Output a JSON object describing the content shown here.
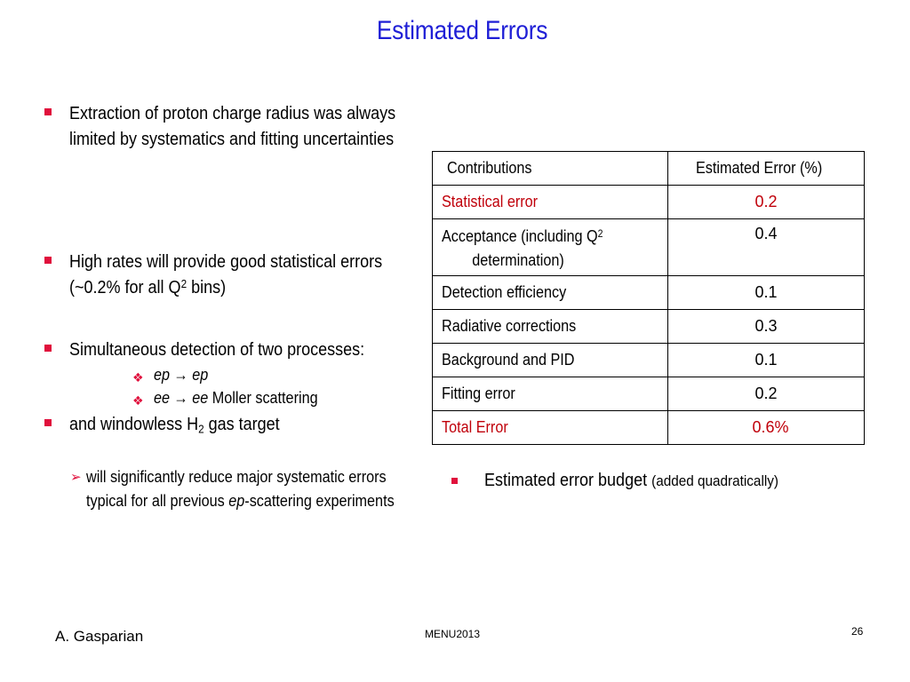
{
  "slide": {
    "title": "Estimated Errors",
    "bullets": [
      {
        "text": "Extraction of proton charge radius was always limited by systematics and fitting uncertainties"
      },
      {
        "text_before": "High rates will provide good statistical errors (~0.2% for all Q",
        "sup": "2",
        "text_after": " bins)"
      },
      {
        "text": "Simultaneous detection of two processes:"
      },
      {
        "text_before": "and windowless H",
        "sub": "2",
        "text_after": " gas target"
      }
    ],
    "sub_bullets": [
      {
        "italic": "ep → ep",
        "text": ""
      },
      {
        "italic": "ee → ee",
        "text": "  Moller scattering"
      }
    ],
    "arrow_bullet": {
      "text_before": "will significantly reduce major systematic errors typical for all previous ",
      "italic": "ep",
      "text_after": "-scattering experiments"
    },
    "budget": {
      "main": "Estimated error budget",
      "paren": "(added quadratically)"
    }
  },
  "table": {
    "headers": [
      "Contributions",
      "Estimated Error (%)"
    ],
    "rows": [
      {
        "label": "Statistical error",
        "value": "0.2",
        "highlight": true
      },
      {
        "label_line1": "Acceptance (including Q",
        "label_sup": "2",
        "label_line2": "determination)",
        "value": "0.4",
        "highlight": false
      },
      {
        "label": "Detection efficiency",
        "value": "0.1",
        "highlight": false
      },
      {
        "label": "Radiative corrections",
        "value": "0.3",
        "highlight": false
      },
      {
        "label": "Background and PID",
        "value": "0.1",
        "highlight": false
      },
      {
        "label": "Fitting error",
        "value": "0.2",
        "highlight": false
      },
      {
        "label": "Total Error",
        "value": "0.6%",
        "highlight": true
      }
    ]
  },
  "footer": {
    "author": "A. Gasparian",
    "event": "MENU2013",
    "page": "26"
  },
  "colors": {
    "title": "#1f1fd6",
    "bullet": "#e0103c",
    "highlight": "#c0000a"
  }
}
